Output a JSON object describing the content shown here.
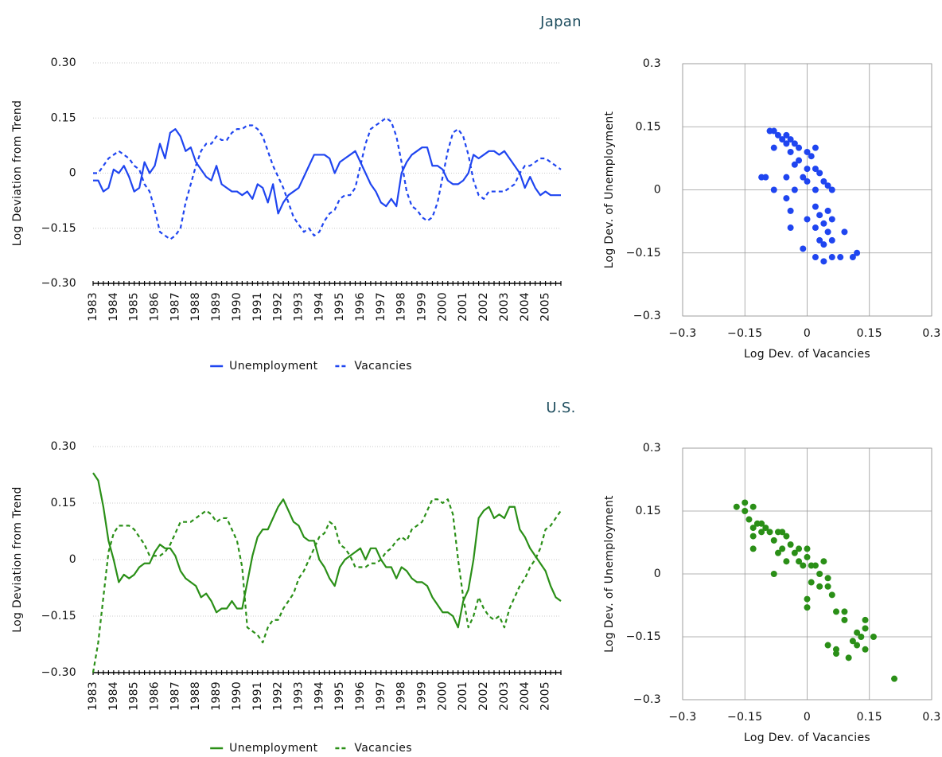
{
  "chart_data": [
    {
      "type": "line",
      "title": "Japan",
      "y_label": "Log Deviation from Trend",
      "ylim": [
        -0.3,
        0.3
      ],
      "yticks": [
        {
          "value": 0.3,
          "label": "0.30"
        },
        0.15,
        0,
        {
          "value": -0.15,
          "label": "−0.15"
        },
        {
          "value": -0.3,
          "label": "−0.30"
        }
      ],
      "grid": true,
      "legend": "bottom",
      "categories": [
        "1983",
        null,
        null,
        null,
        "1984",
        null,
        null,
        null,
        "1985",
        null,
        null,
        null,
        "1986",
        null,
        null,
        null,
        "1987",
        null,
        null,
        null,
        "1988",
        null,
        null,
        null,
        "1989",
        null,
        null,
        null,
        "1990",
        null,
        null,
        null,
        "1991",
        null,
        null,
        null,
        "1992",
        null,
        null,
        null,
        "1993",
        null,
        null,
        null,
        "1994",
        null,
        null,
        null,
        "1995",
        null,
        null,
        null,
        "1996",
        null,
        null,
        null,
        "1997",
        null,
        null,
        null,
        "1998",
        null,
        null,
        null,
        "1999",
        null,
        null,
        null,
        "2000",
        null,
        null,
        null,
        "2001",
        null,
        null,
        null,
        "2002",
        null,
        null,
        null,
        "2003",
        null,
        null,
        null,
        "2004",
        null,
        null,
        null,
        "2005",
        null,
        null,
        null
      ],
      "series": [
        {
          "name": "Unemployment",
          "color": "#1f45f0",
          "line_style": "solid",
          "values": [
            -0.02,
            -0.02,
            -0.05,
            -0.04,
            0.01,
            0,
            0.02,
            -0.01,
            -0.05,
            -0.04,
            0.03,
            0,
            0.02,
            0.08,
            0.04,
            0.11,
            0.12,
            0.1,
            0.06,
            0.07,
            0.03,
            0.01,
            -0.01,
            -0.02,
            0.02,
            -0.03,
            -0.04,
            -0.05,
            -0.05,
            -0.06,
            -0.05,
            -0.07,
            -0.03,
            -0.04,
            -0.08,
            -0.03,
            -0.11,
            -0.08,
            -0.06,
            -0.05,
            -0.04,
            -0.01,
            0.02,
            0.05,
            0.05,
            0.05,
            0.04,
            0,
            0.03,
            0.04,
            0.05,
            0.06,
            0.03,
            0,
            -0.03,
            -0.05,
            -0.08,
            -0.09,
            -0.07,
            -0.09,
            0,
            0.03,
            0.05,
            0.06,
            0.07,
            0.07,
            0.02,
            0.02,
            0.01,
            -0.02,
            -0.03,
            -0.03,
            -0.02,
            0,
            0.05,
            0.04,
            0.05,
            0.06,
            0.06,
            0.05,
            0.06,
            0.04,
            0.02,
            0,
            -0.04,
            -0.01,
            -0.04,
            -0.06,
            -0.05,
            -0.06,
            -0.06,
            -0.06
          ]
        },
        {
          "name": "Vacancies",
          "color": "#1f45f0",
          "line_style": "dashed",
          "values": [
            0,
            0,
            0.02,
            0.04,
            0.05,
            0.06,
            0.05,
            0.04,
            0.02,
            0.01,
            -0.03,
            -0.05,
            -0.1,
            -0.16,
            -0.17,
            -0.18,
            -0.17,
            -0.15,
            -0.08,
            -0.03,
            0.02,
            0.06,
            0.08,
            0.08,
            0.1,
            0.09,
            0.09,
            0.11,
            0.12,
            0.12,
            0.13,
            0.13,
            0.12,
            0.1,
            0.06,
            0.02,
            -0.01,
            -0.04,
            -0.08,
            -0.12,
            -0.14,
            -0.16,
            -0.15,
            -0.17,
            -0.16,
            -0.13,
            -0.11,
            -0.1,
            -0.07,
            -0.06,
            -0.06,
            -0.04,
            0.02,
            0.08,
            0.12,
            0.13,
            0.14,
            0.15,
            0.14,
            0.1,
            0.03,
            -0.05,
            -0.09,
            -0.1,
            -0.12,
            -0.13,
            -0.12,
            -0.08,
            -0.01,
            0.06,
            0.11,
            0.12,
            0.1,
            0.05,
            -0.02,
            -0.06,
            -0.07,
            -0.05,
            -0.05,
            -0.05,
            -0.05,
            -0.04,
            -0.03,
            0,
            0.02,
            0.02,
            0.03,
            0.04,
            0.04,
            0.03,
            0.02,
            0.01
          ]
        }
      ]
    },
    {
      "type": "scatter",
      "x_label": "Log Dev. of Vacancies",
      "y_label": "Log Dev. of Unemployment",
      "color": "#1f45f0",
      "grid": true,
      "xlim": [
        -0.3,
        0.3
      ],
      "ylim": [
        -0.3,
        0.3
      ],
      "xticks": [
        {
          "value": -0.3,
          "label": "−0.3"
        },
        {
          "value": -0.15,
          "label": "−0.15"
        },
        0,
        0.15,
        0.3
      ],
      "yticks": [
        {
          "value": -0.3,
          "label": "−0.3"
        },
        {
          "value": -0.15,
          "label": "−0.15"
        },
        0,
        0.15,
        0.3
      ],
      "x": [
        -0.08,
        -0.09,
        -0.07,
        -0.05,
        -0.04,
        -0.06,
        -0.03,
        -0.02,
        -0.05,
        -0.08,
        -0.04,
        0,
        0.01,
        0.02,
        -0.02,
        -0.03,
        0,
        0.02,
        0.03,
        -0.01,
        -0.05,
        -0.11,
        -0.1,
        -0.08,
        -0.03,
        0,
        0.02,
        0.04,
        0.05,
        0.06,
        -0.05,
        -0.04,
        0,
        0.02,
        0.03,
        0.04,
        0.05,
        0.06,
        0.02,
        -0.04,
        0.05,
        0.06,
        0.04,
        -0.01,
        0.02,
        0.04,
        0.06,
        0.08,
        0.11,
        0.12,
        0.09,
        0.03
      ],
      "values": [
        0.14,
        0.14,
        0.13,
        0.13,
        0.12,
        0.12,
        0.11,
        0.1,
        0.11,
        0.1,
        0.09,
        0.09,
        0.08,
        0.1,
        0.07,
        0.06,
        0.05,
        0.05,
        0.04,
        0.03,
        0.03,
        0.03,
        0.03,
        0,
        0,
        0.02,
        0,
        0.02,
        0.01,
        0,
        -0.02,
        -0.05,
        -0.07,
        -0.04,
        -0.06,
        -0.08,
        -0.05,
        -0.07,
        -0.09,
        -0.09,
        -0.1,
        -0.12,
        -0.13,
        -0.14,
        -0.16,
        -0.17,
        -0.16,
        -0.16,
        -0.16,
        -0.15,
        -0.1,
        -0.12
      ]
    },
    {
      "type": "line",
      "title": "U.S.",
      "y_label": "Log Deviation from Trend",
      "ylim": [
        -0.3,
        0.3
      ],
      "yticks": [
        {
          "value": 0.3,
          "label": "0.30"
        },
        0.15,
        0,
        {
          "value": -0.15,
          "label": "−0.15"
        },
        {
          "value": -0.3,
          "label": "−0.30"
        }
      ],
      "grid": true,
      "legend": "bottom",
      "categories": [
        "1983",
        null,
        null,
        null,
        "1984",
        null,
        null,
        null,
        "1985",
        null,
        null,
        null,
        "1986",
        null,
        null,
        null,
        "1987",
        null,
        null,
        null,
        "1988",
        null,
        null,
        null,
        "1989",
        null,
        null,
        null,
        "1990",
        null,
        null,
        null,
        "1991",
        null,
        null,
        null,
        "1992",
        null,
        null,
        null,
        "1993",
        null,
        null,
        null,
        "1994",
        null,
        null,
        null,
        "1995",
        null,
        null,
        null,
        "1996",
        null,
        null,
        null,
        "1997",
        null,
        null,
        null,
        "1998",
        null,
        null,
        null,
        "1999",
        null,
        null,
        null,
        "2000",
        null,
        null,
        null,
        "2001",
        null,
        null,
        null,
        "2002",
        null,
        null,
        null,
        "2003",
        null,
        null,
        null,
        "2004",
        null,
        null,
        null,
        "2005",
        null,
        null,
        null
      ],
      "series": [
        {
          "name": "Unemployment",
          "color": "#2a8f17",
          "line_style": "solid",
          "values": [
            0.23,
            0.21,
            0.14,
            0.05,
            0,
            -0.06,
            -0.04,
            -0.05,
            -0.04,
            -0.02,
            -0.01,
            -0.01,
            0.02,
            0.04,
            0.03,
            0.03,
            0.01,
            -0.03,
            -0.05,
            -0.06,
            -0.07,
            -0.1,
            -0.09,
            -0.11,
            -0.14,
            -0.13,
            -0.13,
            -0.11,
            -0.13,
            -0.13,
            -0.06,
            0.01,
            0.06,
            0.08,
            0.08,
            0.11,
            0.14,
            0.16,
            0.13,
            0.1,
            0.09,
            0.06,
            0.05,
            0.05,
            0,
            -0.02,
            -0.05,
            -0.07,
            -0.02,
            0,
            0.01,
            0.02,
            0.03,
            0,
            0.03,
            0.03,
            0,
            -0.02,
            -0.02,
            -0.05,
            -0.02,
            -0.03,
            -0.05,
            -0.06,
            -0.06,
            -0.07,
            -0.1,
            -0.12,
            -0.14,
            -0.14,
            -0.15,
            -0.18,
            -0.11,
            -0.08,
            0,
            0.11,
            0.13,
            0.14,
            0.11,
            0.12,
            0.11,
            0.14,
            0.14,
            0.08,
            0.06,
            0.03,
            0.01,
            -0.01,
            -0.03,
            -0.07,
            -0.1,
            -0.11
          ]
        },
        {
          "name": "Vacancies",
          "color": "#2a8f17",
          "line_style": "dashed",
          "values": [
            -0.3,
            -0.22,
            -0.1,
            0.02,
            0.07,
            0.09,
            0.09,
            0.09,
            0.08,
            0.06,
            0.04,
            0.01,
            0.01,
            0.01,
            0.02,
            0.04,
            0.07,
            0.1,
            0.1,
            0.1,
            0.11,
            0.12,
            0.13,
            0.12,
            0.1,
            0.11,
            0.11,
            0.08,
            0.05,
            -0.02,
            -0.18,
            -0.19,
            -0.2,
            -0.22,
            -0.18,
            -0.16,
            -0.16,
            -0.13,
            -0.11,
            -0.09,
            -0.05,
            -0.03,
            0,
            0.03,
            0.06,
            0.07,
            0.1,
            0.09,
            0.04,
            0.03,
            0.01,
            -0.02,
            -0.02,
            -0.02,
            -0.01,
            -0.01,
            0,
            0.02,
            0.03,
            0.05,
            0.06,
            0.05,
            0.08,
            0.09,
            0.1,
            0.13,
            0.16,
            0.16,
            0.15,
            0.16,
            0.12,
            0,
            -0.1,
            -0.18,
            -0.15,
            -0.1,
            -0.13,
            -0.15,
            -0.16,
            -0.15,
            -0.18,
            -0.13,
            -0.1,
            -0.07,
            -0.05,
            -0.02,
            0,
            0.03,
            0.08,
            0.09,
            0.11,
            0.13
          ]
        }
      ]
    },
    {
      "type": "scatter",
      "x_label": "Log Dev. of Vacancies",
      "y_label": "Log Dev. of Unemployment",
      "color": "#2a8f17",
      "grid": true,
      "xlim": [
        -0.3,
        0.3
      ],
      "ylim": [
        -0.3,
        0.3
      ],
      "xticks": [
        {
          "value": -0.3,
          "label": "−0.3"
        },
        {
          "value": -0.15,
          "label": "−0.15"
        },
        0,
        0.15,
        0.3
      ],
      "yticks": [
        {
          "value": -0.3,
          "label": "−0.3"
        },
        {
          "value": -0.15,
          "label": "−0.15"
        },
        0,
        0.15,
        0.3
      ],
      "x": [
        -0.17,
        -0.15,
        -0.15,
        -0.13,
        -0.14,
        -0.13,
        -0.12,
        -0.11,
        -0.1,
        -0.11,
        -0.13,
        -0.13,
        -0.09,
        -0.07,
        -0.06,
        -0.05,
        -0.08,
        -0.06,
        -0.04,
        -0.02,
        0,
        -0.07,
        -0.03,
        -0.02,
        0,
        -0.01,
        0.01,
        0.02,
        0.04,
        -0.08,
        -0.05,
        0.03,
        0.05,
        0.01,
        0.03,
        0.05,
        0.06,
        0,
        0,
        0.07,
        0.09,
        0.09,
        0.14,
        0.14,
        0.12,
        0.13,
        0.16,
        0.11,
        0.12,
        0.14,
        0.05,
        0.07,
        0.07,
        0.1,
        0.21
      ],
      "values": [
        0.16,
        0.17,
        0.15,
        0.16,
        0.13,
        0.11,
        0.12,
        0.12,
        0.11,
        0.1,
        0.09,
        0.06,
        0.1,
        0.1,
        0.1,
        0.09,
        0.08,
        0.06,
        0.07,
        0.06,
        0.06,
        0.05,
        0.05,
        0.03,
        0.04,
        0.02,
        0.02,
        0.02,
        0.03,
        0,
        0.03,
        0,
        -0.01,
        -0.02,
        -0.03,
        -0.03,
        -0.05,
        -0.06,
        -0.08,
        -0.09,
        -0.09,
        -0.11,
        -0.11,
        -0.13,
        -0.14,
        -0.15,
        -0.15,
        -0.16,
        -0.17,
        -0.18,
        -0.17,
        -0.18,
        -0.19,
        -0.2,
        -0.25
      ]
    }
  ]
}
